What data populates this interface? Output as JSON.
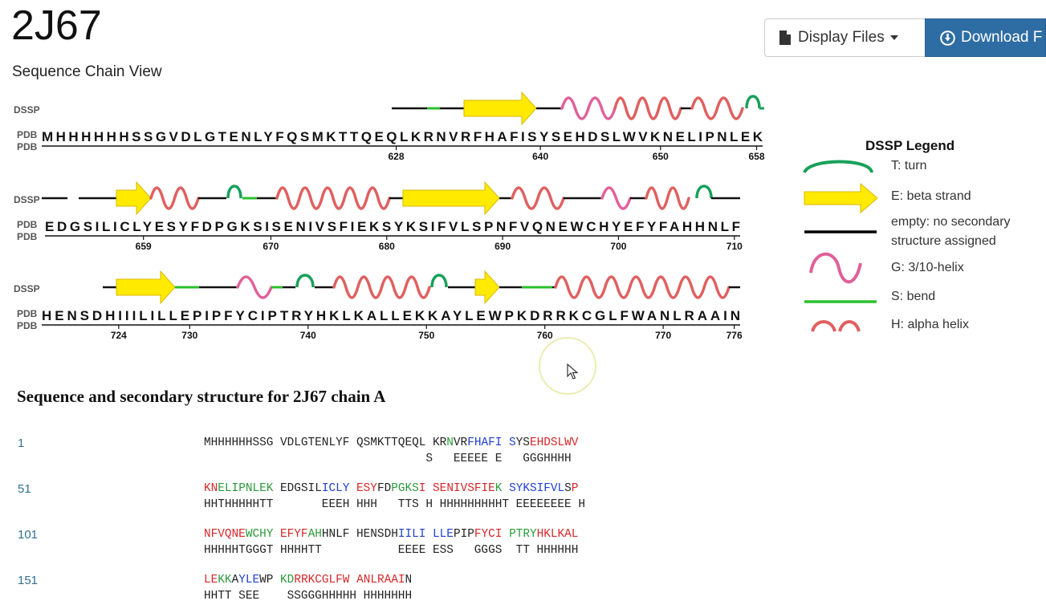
{
  "header": {
    "title": "2J67",
    "subtitle": "Sequence Chain View",
    "display_files_label": "Display Files",
    "download_label": "Download F"
  },
  "track_labels": {
    "dssp": "DSSP",
    "pdb": "PDB"
  },
  "chain_view": {
    "rows": [
      {
        "sequence": "MHHHHHHSSGVDLGTENLYFQSMKTTQEQLKRNVRFHAFISYSEHDSLWVKNELIPNLEK",
        "ticks": [
          {
            "label": "628",
            "res": 628
          },
          {
            "label": "640",
            "res": 640
          },
          {
            "label": "650",
            "res": 650
          },
          {
            "label": "658",
            "res": 658
          }
        ]
      },
      {
        "sequence": "EDGSILICLYESYFDPGKSISENIVSFIEKSYKSIFVLSPNFVQNEWCHYEFYFAHHNLF",
        "ticks": [
          {
            "label": "659",
            "res": 659
          },
          {
            "label": "670",
            "res": 670
          },
          {
            "label": "680",
            "res": 680
          },
          {
            "label": "690",
            "res": 690
          },
          {
            "label": "700",
            "res": 700
          },
          {
            "label": "710",
            "res": 710
          }
        ]
      },
      {
        "sequence": "HENSDHIIILILLEPIPFYCIPTRYHKLKALLEKKAYLEWPKDRRKCGLFWANLRAAIN",
        "ticks": [
          {
            "label": "724",
            "res": 724
          },
          {
            "label": "730",
            "res": 730
          },
          {
            "label": "740",
            "res": 740
          },
          {
            "label": "750",
            "res": 750
          },
          {
            "label": "760",
            "res": 760
          },
          {
            "label": "770",
            "res": 770
          },
          {
            "label": "776",
            "res": 776
          }
        ]
      }
    ]
  },
  "legend": {
    "title": "DSSP Legend",
    "items": [
      {
        "type": "turn",
        "label": "T: turn",
        "color": "#18a05a"
      },
      {
        "type": "strand",
        "label": "E: beta strand",
        "color": "#ffea00"
      },
      {
        "type": "none",
        "label_lines": [
          "empty: no secondary",
          "structure assigned"
        ],
        "color": "#000000"
      },
      {
        "type": "310",
        "label": "G: 3/10-helix",
        "color": "#e0609a"
      },
      {
        "type": "bend",
        "label": "S: bend",
        "color": "#2cc02c"
      },
      {
        "type": "helix",
        "label": "H: alpha helix",
        "color": "#e06060"
      }
    ]
  },
  "sequence_table": {
    "title": "Sequence and secondary structure for 2J67 chain A",
    "rows": [
      {
        "number": "1",
        "seq_segments": [
          {
            "t": "MHHHHHHSSG VDLGTENLYF QSMKTTQEQL KR",
            "c": "k"
          },
          {
            "t": "N",
            "c": "g"
          },
          {
            "t": "VR",
            "c": "k"
          },
          {
            "t": "FHAFI",
            "c": "b"
          },
          {
            "t": " ",
            "c": "k"
          },
          {
            "t": "S",
            "c": "b"
          },
          {
            "t": "YS",
            "c": "k"
          },
          {
            "t": "EHDSLWV",
            "c": "r"
          }
        ],
        "ss": "                                S   EEEEE E   GGGHHHH"
      },
      {
        "number": "51",
        "seq_segments": [
          {
            "t": "KN",
            "c": "r"
          },
          {
            "t": "ELIPNLEK",
            "c": "g"
          },
          {
            "t": " EDGSIL",
            "c": "k"
          },
          {
            "t": "ICLY",
            "c": "b"
          },
          {
            "t": " ",
            "c": "k"
          },
          {
            "t": "ESY",
            "c": "r"
          },
          {
            "t": "FD",
            "c": "k"
          },
          {
            "t": "PGKS",
            "c": "g"
          },
          {
            "t": "I",
            "c": "r"
          },
          {
            "t": " ",
            "c": "k"
          },
          {
            "t": "SENIVSFIE",
            "c": "r"
          },
          {
            "t": "K",
            "c": "g"
          },
          {
            "t": " ",
            "c": "k"
          },
          {
            "t": "SYKSIFVL",
            "c": "b"
          },
          {
            "t": "S",
            "c": "k"
          },
          {
            "t": "P",
            "c": "r"
          }
        ],
        "ss": "HHTHHHHHTT       EEEH HHH   TTS H HHHHHHHHHT EEEEEEEE H"
      },
      {
        "number": "101",
        "seq_segments": [
          {
            "t": "NFVQNE",
            "c": "r"
          },
          {
            "t": "WCHY",
            "c": "g"
          },
          {
            "t": " ",
            "c": "k"
          },
          {
            "t": "EFYF",
            "c": "r"
          },
          {
            "t": "AH",
            "c": "g"
          },
          {
            "t": "HNLF HENSDH",
            "c": "k"
          },
          {
            "t": "IILI",
            "c": "b"
          },
          {
            "t": " ",
            "c": "k"
          },
          {
            "t": "LLE",
            "c": "b"
          },
          {
            "t": "PIP",
            "c": "k"
          },
          {
            "t": "FYCI",
            "c": "r"
          },
          {
            "t": " ",
            "c": "k"
          },
          {
            "t": "PTRY",
            "c": "g"
          },
          {
            "t": "HKLKAL",
            "c": "r"
          }
        ],
        "ss": "HHHHHTGGGT HHHHTT           EEEE ESS   GGGS  TT HHHHHH"
      },
      {
        "number": "151",
        "seq_segments": [
          {
            "t": "LE",
            "c": "r"
          },
          {
            "t": "KK",
            "c": "g"
          },
          {
            "t": "A",
            "c": "k"
          },
          {
            "t": "YLE",
            "c": "b"
          },
          {
            "t": "WP",
            "c": "k"
          },
          {
            "t": " ",
            "c": "k"
          },
          {
            "t": "KD",
            "c": "g"
          },
          {
            "t": "RRKCGLFW",
            "c": "r"
          },
          {
            "t": " ",
            "c": "k"
          },
          {
            "t": "ANLRAAI",
            "c": "r"
          },
          {
            "t": "N",
            "c": "k"
          }
        ],
        "ss": "HHTT SEE    SSGGGHHHHH HHHHHHH"
      }
    ]
  }
}
